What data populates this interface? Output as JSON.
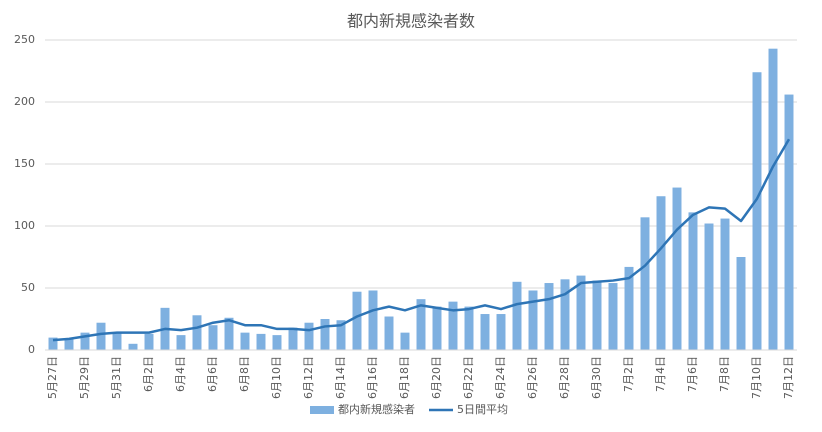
{
  "chart_data": {
    "type": "bar_line",
    "title": "都内新規感染者数",
    "categories": [
      "5月27日",
      null,
      "5月29日",
      null,
      "5月31日",
      null,
      "6月2日",
      null,
      "6月4日",
      null,
      "6月6日",
      null,
      "6月8日",
      null,
      "6月10日",
      null,
      "6月12日",
      null,
      "6月14日",
      null,
      "6月16日",
      null,
      "6月18日",
      null,
      "6月20日",
      null,
      "6月22日",
      null,
      "6月24日",
      null,
      "6月26日",
      null,
      "6月28日",
      null,
      "6月30日",
      null,
      "7月2日",
      null,
      "7月4日",
      null,
      "7月6日",
      null,
      "7月8日",
      null,
      "7月10日",
      null,
      "7月12日"
    ],
    "series": [
      {
        "name": "都内新規感染者",
        "type": "bar",
        "color": "#7eb0e0",
        "values": [
          10,
          9,
          14,
          22,
          14,
          5,
          13,
          34,
          12,
          28,
          20,
          26,
          14,
          13,
          12,
          18,
          22,
          25,
          24,
          47,
          48,
          27,
          14,
          41,
          35,
          39,
          35,
          29,
          29,
          55,
          48,
          54,
          57,
          60,
          56,
          54,
          67,
          107,
          124,
          131,
          111,
          102,
          106,
          75,
          224,
          243,
          206
        ]
      },
      {
        "name": "5日間平均",
        "type": "line",
        "color": "#2e75b6",
        "values": [
          8,
          9,
          11,
          13,
          14,
          14,
          14,
          17,
          16,
          18,
          22,
          24,
          20,
          20,
          17,
          17,
          16,
          19,
          20,
          27,
          32,
          35,
          32,
          36,
          34,
          32,
          33,
          36,
          33,
          37,
          39,
          41,
          45,
          54,
          55,
          56,
          58,
          68,
          82,
          97,
          109,
          115,
          114,
          104,
          122,
          148,
          170
        ]
      }
    ],
    "ylim": [
      0,
      250
    ],
    "yticks": [
      0,
      50,
      100,
      150,
      200,
      250
    ],
    "grid": true,
    "legend": "bottom"
  }
}
